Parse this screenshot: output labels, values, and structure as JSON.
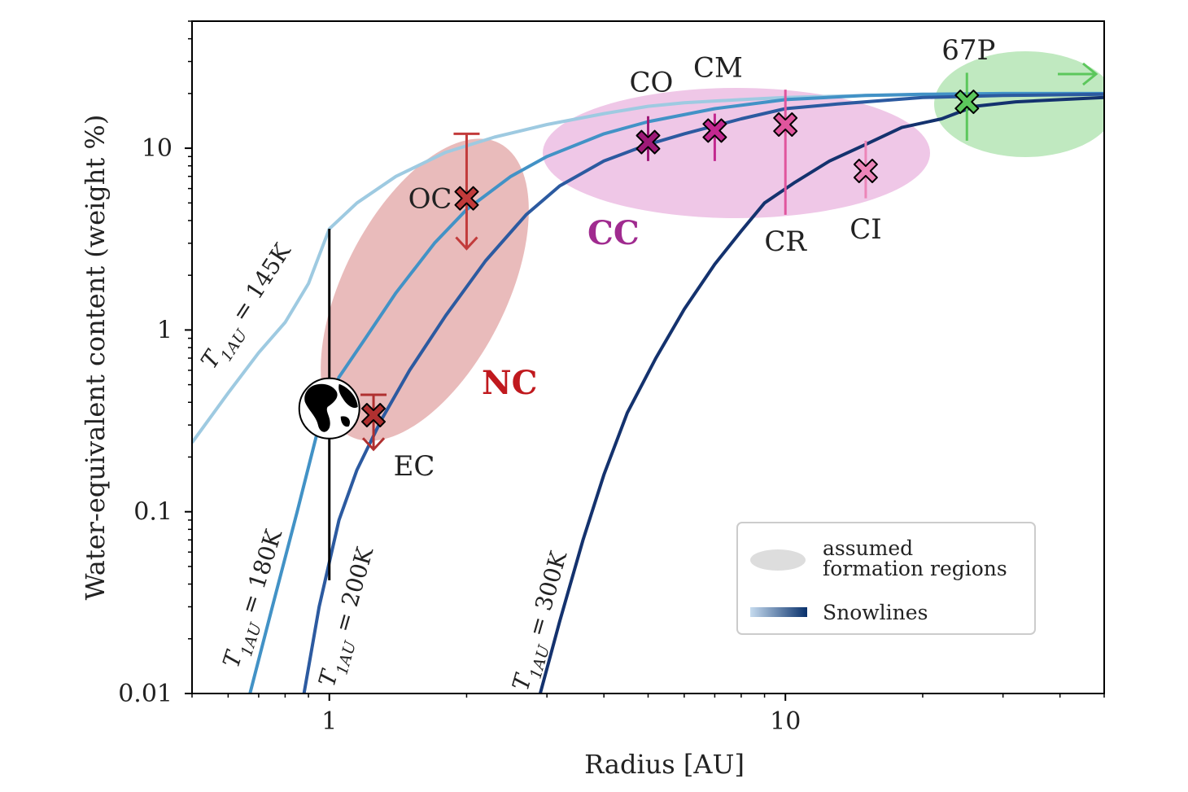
{
  "chart_data": {
    "type": "line",
    "xlabel": "Radius [AU]",
    "ylabel": "Water-equivalent content (weight %)",
    "xscale": "log",
    "yscale": "log",
    "xlim": [
      0.5,
      50
    ],
    "ylim": [
      0.01,
      50
    ],
    "x_ticks": [
      {
        "value": 1,
        "label": "1"
      },
      {
        "value": 10,
        "label": "10"
      }
    ],
    "y_ticks": [
      {
        "value": 0.01,
        "label": "0.01"
      },
      {
        "value": 0.1,
        "label": "0.1"
      },
      {
        "value": 1,
        "label": "1"
      },
      {
        "value": 10,
        "label": "10"
      }
    ],
    "grid": false,
    "series": [
      {
        "name": "T1AU = 145K",
        "label_prefix": "T",
        "label_sub": "1AU",
        "label_suffix": " = 145K",
        "color": "#9ecae1",
        "x": [
          0.5,
          0.6,
          0.7,
          0.8,
          0.9,
          1.0,
          1.15,
          1.4,
          1.8,
          2.3,
          3.0,
          4.0,
          5.0,
          6.0,
          8.0,
          10,
          15,
          20,
          30,
          50
        ],
        "y": [
          0.24,
          0.45,
          0.75,
          1.1,
          1.8,
          3.6,
          5.0,
          7.0,
          9.5,
          11.5,
          13.5,
          15.5,
          17.0,
          17.8,
          18.5,
          19.0,
          19.5,
          19.7,
          20.0,
          20.0
        ]
      },
      {
        "name": "T1AU = 180K",
        "label_prefix": "T",
        "label_sub": "1AU",
        "label_suffix": " = 180K",
        "color": "#4292c6",
        "x": [
          0.67,
          0.75,
          0.85,
          0.95,
          1.05,
          1.2,
          1.4,
          1.7,
          2.0,
          2.5,
          3.0,
          4.0,
          5.0,
          7.0,
          10,
          15,
          20,
          30,
          50
        ],
        "y": [
          0.01,
          0.03,
          0.1,
          0.3,
          0.55,
          0.9,
          1.6,
          3.0,
          4.6,
          7.0,
          9.0,
          12.0,
          14.0,
          16.5,
          18.5,
          19.5,
          19.8,
          20.0,
          20.0
        ]
      },
      {
        "name": "T1AU = 200K",
        "label_prefix": "T",
        "label_sub": "1AU",
        "label_suffix": " = 200K",
        "color": "#2c5aa0",
        "x": [
          0.88,
          0.95,
          1.05,
          1.15,
          1.3,
          1.5,
          1.8,
          2.2,
          2.7,
          3.2,
          4.0,
          5.0,
          6.0,
          8.0,
          10,
          13,
          20,
          30,
          50
        ],
        "y": [
          0.01,
          0.03,
          0.09,
          0.17,
          0.32,
          0.6,
          1.2,
          2.4,
          4.3,
          6.2,
          8.5,
          10.5,
          12.0,
          14.5,
          16.5,
          17.5,
          19.0,
          19.5,
          19.8
        ]
      },
      {
        "name": "T1AU = 300K",
        "label_prefix": "T",
        "label_sub": "1AU",
        "label_suffix": " = 300K",
        "color": "#14326e",
        "x": [
          2.9,
          3.2,
          3.6,
          4.0,
          4.5,
          5.2,
          6.0,
          7.0,
          8.0,
          9.0,
          10.5,
          12.5,
          15,
          18,
          22,
          26,
          32,
          40,
          50
        ],
        "y": [
          0.01,
          0.025,
          0.07,
          0.16,
          0.35,
          0.7,
          1.3,
          2.3,
          3.5,
          5.0,
          6.5,
          8.5,
          10.5,
          13.0,
          14.5,
          17.0,
          18.0,
          18.5,
          19.0
        ]
      }
    ],
    "points": [
      {
        "label": "OC",
        "x": 2.0,
        "y": 5.3,
        "color": "#c23b3b",
        "group": "NC",
        "bar_type": "upper-limit",
        "y_bar_top": 12.0,
        "y_bar_bottom": 2.8,
        "label_pos": "left"
      },
      {
        "label": "EC",
        "x": 1.25,
        "y": 0.34,
        "color": "#b03030",
        "group": "NC",
        "bar_type": "upper-limit",
        "y_bar_top": 0.44,
        "y_bar_bottom": 0.22,
        "label_pos": "below-right"
      },
      {
        "label": "CO",
        "x": 5.0,
        "y": 10.8,
        "color": "#9e1a78",
        "group": "CC",
        "bar_type": "range",
        "y_bar_top": 15.0,
        "y_bar_bottom": 8.5,
        "label_pos": "above"
      },
      {
        "label": "CM",
        "x": 7.0,
        "y": 12.5,
        "color": "#c2288f",
        "group": "CC",
        "bar_type": "range",
        "y_bar_top": 15.5,
        "y_bar_bottom": 8.5,
        "label_pos": "above"
      },
      {
        "label": "CR",
        "x": 10.0,
        "y": 13.5,
        "color": "#e0559d",
        "group": "CC",
        "bar_type": "range",
        "y_bar_top": 21.0,
        "y_bar_bottom": 4.3,
        "label_pos": "below"
      },
      {
        "label": "CI",
        "x": 15.0,
        "y": 7.5,
        "color": "#ec85b8",
        "group": "CC",
        "bar_type": "range",
        "y_bar_top": 11.0,
        "y_bar_bottom": 5.3,
        "label_pos": "below"
      },
      {
        "label": "67P",
        "x": 25.0,
        "y": 18.0,
        "color": "#5cc75c",
        "group": "comet",
        "bar_type": "range",
        "y_bar_top": 26.0,
        "y_bar_bottom": 11.0,
        "label_pos": "above"
      }
    ],
    "earth": {
      "icon": "earth-globe-icon",
      "x": 1.0,
      "y": 0.37,
      "bar_top": 3.6,
      "bar_bottom": 0.042
    },
    "regions": [
      {
        "name": "NC",
        "label": "NC",
        "color": "#e8b7b7",
        "label_color": "#c0191e"
      },
      {
        "name": "CC",
        "label": "CC",
        "color": "#eec4e6",
        "label_color": "#a02b8f"
      },
      {
        "name": "comet",
        "label": "",
        "color": "#bde8bd",
        "arrow_color": "#5cc75c"
      }
    ],
    "legend": {
      "placement": "lower-right",
      "entries": [
        {
          "label_line1": "assumed",
          "label_line2": "formation regions",
          "swatch": "gray-ellipse",
          "color": "#dddddd"
        },
        {
          "label_line1": "Snowlines",
          "label_line2": "",
          "swatch": "blue-gradient",
          "color_from": "#c6dbef",
          "color_to": "#08306b"
        }
      ]
    }
  }
}
